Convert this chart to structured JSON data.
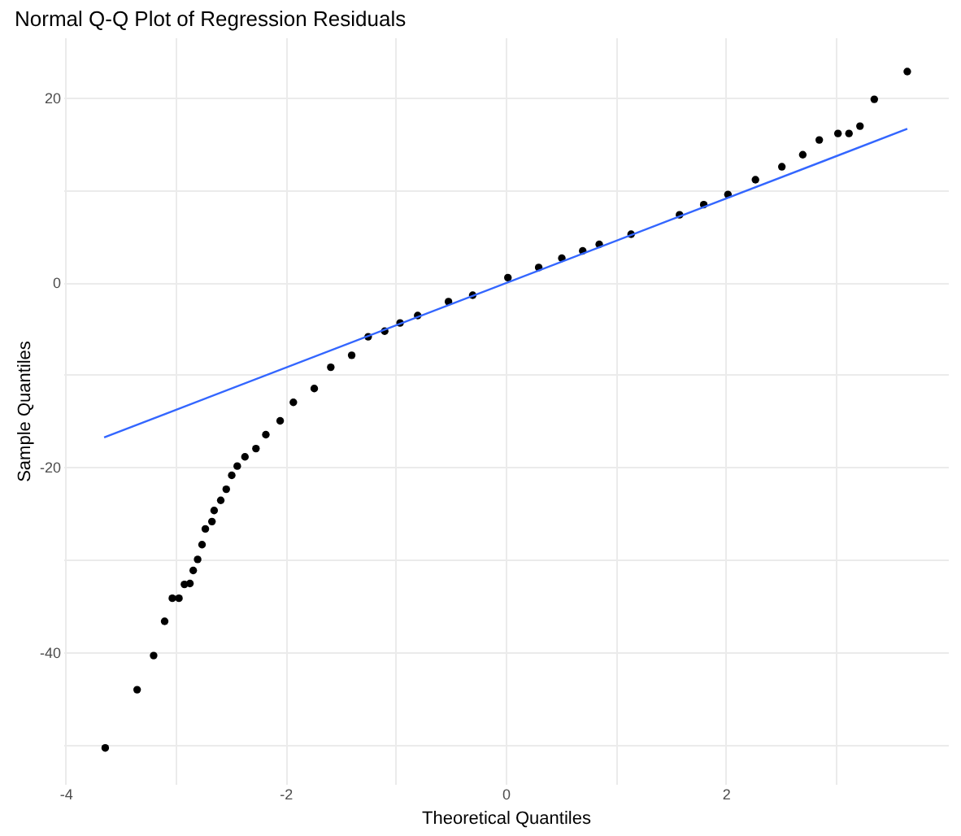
{
  "chart_data": {
    "type": "scatter",
    "title": "Normal Q-Q Plot of Regression Residuals",
    "xlabel": "Theoretical Quantiles",
    "ylabel": "Sample Quantiles",
    "xlim": [
      -4.02,
      4.02
    ],
    "ylim": [
      -54.3,
      26.5
    ],
    "xticks": [
      -4,
      {
        "value": -3,
        "label": null
      },
      -2,
      {
        "value": -1,
        "label": null
      },
      0,
      {
        "value": 1,
        "label": null
      },
      2,
      {
        "value": 3,
        "label": null
      }
    ],
    "yticks": [
      {
        "value": -50,
        "label": null
      },
      -40,
      {
        "value": -30,
        "label": null
      },
      -20,
      {
        "value": -10,
        "label": null
      },
      0,
      {
        "value": 10,
        "label": null
      },
      20
    ],
    "grid": true,
    "marker": "circle",
    "series": [
      {
        "color": "#000000",
        "x": [
          -3.64,
          -3.35,
          -3.2,
          -3.1,
          -3.03,
          -2.97,
          -2.92,
          -2.87,
          -2.84,
          -2.8,
          -2.76,
          -2.73,
          -2.67,
          -2.65,
          -2.59,
          -2.54,
          -2.49,
          -2.44,
          -2.37,
          -2.27,
          -2.18,
          -2.05,
          -1.93,
          -1.74,
          -1.59,
          -1.4,
          -1.25,
          -1.1,
          -0.96,
          -0.8,
          -0.52,
          -0.3,
          0.02,
          0.3,
          0.51,
          0.7,
          0.85,
          1.14,
          1.58,
          1.8,
          2.02,
          2.27,
          2.51,
          2.7,
          2.85,
          3.02,
          3.12,
          3.22,
          3.35,
          3.65
        ],
        "values": [
          -50.4,
          -44.1,
          -40.4,
          -36.7,
          -34.2,
          -34.2,
          -32.7,
          -32.6,
          -31.2,
          -30.0,
          -28.4,
          -26.7,
          -25.9,
          -24.7,
          -23.6,
          -22.4,
          -20.9,
          -19.9,
          -18.9,
          -18.0,
          -16.5,
          -15.0,
          -13.0,
          -11.5,
          -9.2,
          -7.9,
          -5.9,
          -5.3,
          -4.4,
          -3.6,
          -2.1,
          -1.4,
          0.5,
          1.6,
          2.6,
          3.4,
          4.1,
          5.2,
          7.3,
          8.4,
          9.5,
          11.1,
          12.5,
          13.8,
          15.4,
          16.1,
          16.1,
          16.9,
          19.8,
          22.8
        ]
      },
      {
        "type": "line",
        "color": "#3366ff",
        "line_style": "solid",
        "marker": "none",
        "x": [
          -3.65,
          3.65
        ],
        "values": [
          -16.8,
          16.6
        ]
      }
    ]
  }
}
